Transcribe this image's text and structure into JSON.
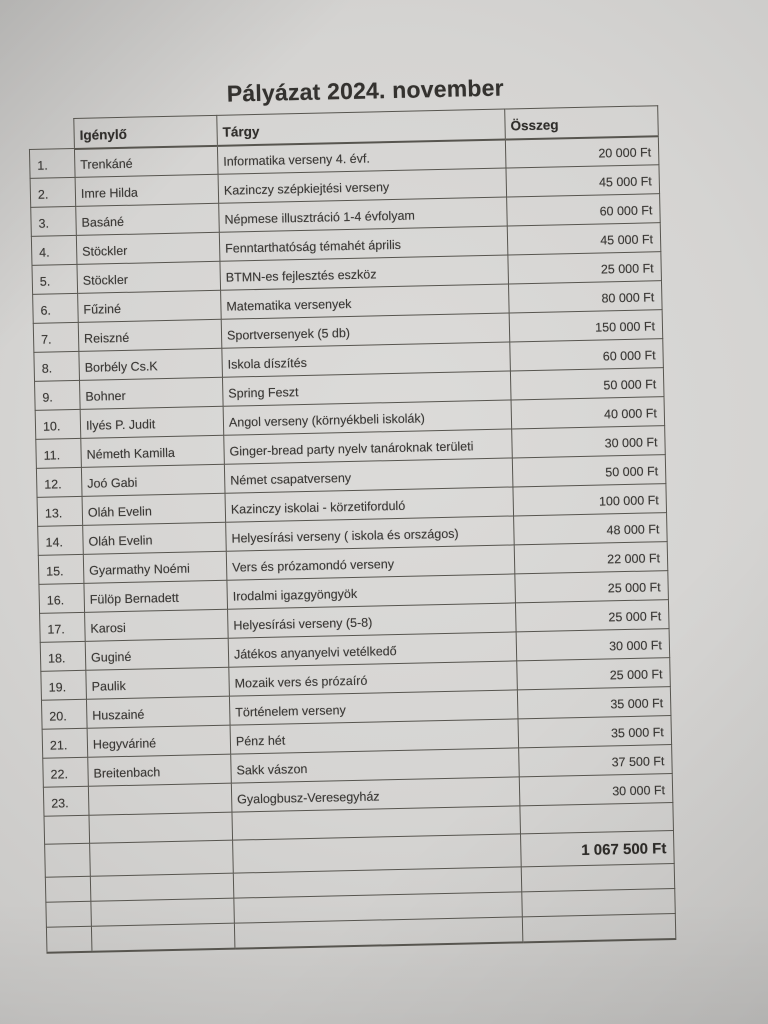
{
  "page": {
    "title": "Pályázat 2024. november"
  },
  "table": {
    "headers": {
      "applicant": "Igénylő",
      "subject": "Tárgy",
      "amount": "Összeg"
    },
    "rows": [
      {
        "num": "1.",
        "applicant": "Trenkáné",
        "subject": "Informatika verseny 4. évf.",
        "amount": "20 000 Ft"
      },
      {
        "num": "2.",
        "applicant": "Imre Hilda",
        "subject": "Kazinczy szépkiejtési verseny",
        "amount": "45 000 Ft"
      },
      {
        "num": "3.",
        "applicant": "Basáné",
        "subject": "Népmese illusztráció 1-4 évfolyam",
        "amount": "60 000 Ft"
      },
      {
        "num": "4.",
        "applicant": "Stöckler",
        "subject": "Fenntarthatóság témahét április",
        "amount": "45 000 Ft"
      },
      {
        "num": "5.",
        "applicant": "Stöckler",
        "subject": "BTMN-es fejlesztés eszköz",
        "amount": "25 000 Ft"
      },
      {
        "num": "6.",
        "applicant": "Fűziné",
        "subject": "Matematika versenyek",
        "amount": "80 000 Ft"
      },
      {
        "num": "7.",
        "applicant": "Reiszné",
        "subject": "Sportversenyek (5 db)",
        "amount": "150 000 Ft"
      },
      {
        "num": "8.",
        "applicant": "Borbély Cs.K",
        "subject": "Iskola díszítés",
        "amount": "60 000 Ft"
      },
      {
        "num": "9.",
        "applicant": "Bohner",
        "subject": "Spring Feszt",
        "amount": "50 000 Ft"
      },
      {
        "num": "10.",
        "applicant": "Ilyés P. Judit",
        "subject": "Angol verseny (környékbeli iskolák)",
        "amount": "40 000 Ft"
      },
      {
        "num": "11.",
        "applicant": "Németh Kamilla",
        "subject": "Ginger-bread party nyelv tanároknak területi",
        "amount": "30 000 Ft"
      },
      {
        "num": "12.",
        "applicant": "Joó Gabi",
        "subject": "Német csapatverseny",
        "amount": "50 000 Ft"
      },
      {
        "num": "13.",
        "applicant": "Oláh Evelin",
        "subject": "Kazinczy iskolai - körzetiforduló",
        "amount": "100 000 Ft"
      },
      {
        "num": "14.",
        "applicant": "Oláh Evelin",
        "subject": "Helyesírási verseny ( iskola és országos)",
        "amount": "48 000 Ft"
      },
      {
        "num": "15.",
        "applicant": "Gyarmathy Noémi",
        "subject": "Vers és prózamondó verseny",
        "amount": "22 000 Ft"
      },
      {
        "num": "16.",
        "applicant": "Fülöp Bernadett",
        "subject": "Irodalmi igazgyöngyök",
        "amount": "25 000 Ft"
      },
      {
        "num": "17.",
        "applicant": "Karosi",
        "subject": "Helyesírási verseny (5-8)",
        "amount": "25 000 Ft"
      },
      {
        "num": "18.",
        "applicant": "Guginé",
        "subject": "Játékos anyanyelvi vetélkedő",
        "amount": "30 000 Ft"
      },
      {
        "num": "19.",
        "applicant": "Paulik",
        "subject": "Mozaik vers és prózaíró",
        "amount": "25 000 Ft"
      },
      {
        "num": "20.",
        "applicant": "Huszainé",
        "subject": "Történelem verseny",
        "amount": "35 000 Ft"
      },
      {
        "num": "21.",
        "applicant": "Hegyváriné",
        "subject": "Pénz hét",
        "amount": "35 000 Ft"
      },
      {
        "num": "22.",
        "applicant": "Breitenbach",
        "subject": "Sakk vászon",
        "amount": "37 500 Ft"
      },
      {
        "num": "23.",
        "applicant": "",
        "subject": "Gyalogbusz-Veresegyház",
        "amount": "30 000 Ft"
      }
    ],
    "empty_rows_before_total": 1,
    "total": {
      "amount": "1 067 500 Ft"
    },
    "empty_rows_after_total": 3
  },
  "colors": {
    "paper": "#d5d4d2",
    "ink": "#3b3936",
    "table_line": "#57554f"
  }
}
